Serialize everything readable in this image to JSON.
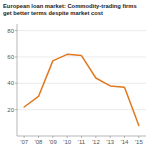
{
  "chart_data": {
    "type": "line",
    "title": "European loan market: Commodity-trading firms\nget better terms despite market cost",
    "categories": [
      "'07",
      "'08",
      "'09",
      "'10",
      "'11",
      "'12",
      "'13",
      "'14",
      "'15"
    ],
    "values": [
      22,
      30,
      57,
      62,
      61,
      44,
      38,
      37,
      8
    ],
    "color": "#E07820",
    "ylim": [
      0,
      85
    ],
    "yticks": [
      20,
      40,
      60,
      80
    ],
    "grid": true
  }
}
